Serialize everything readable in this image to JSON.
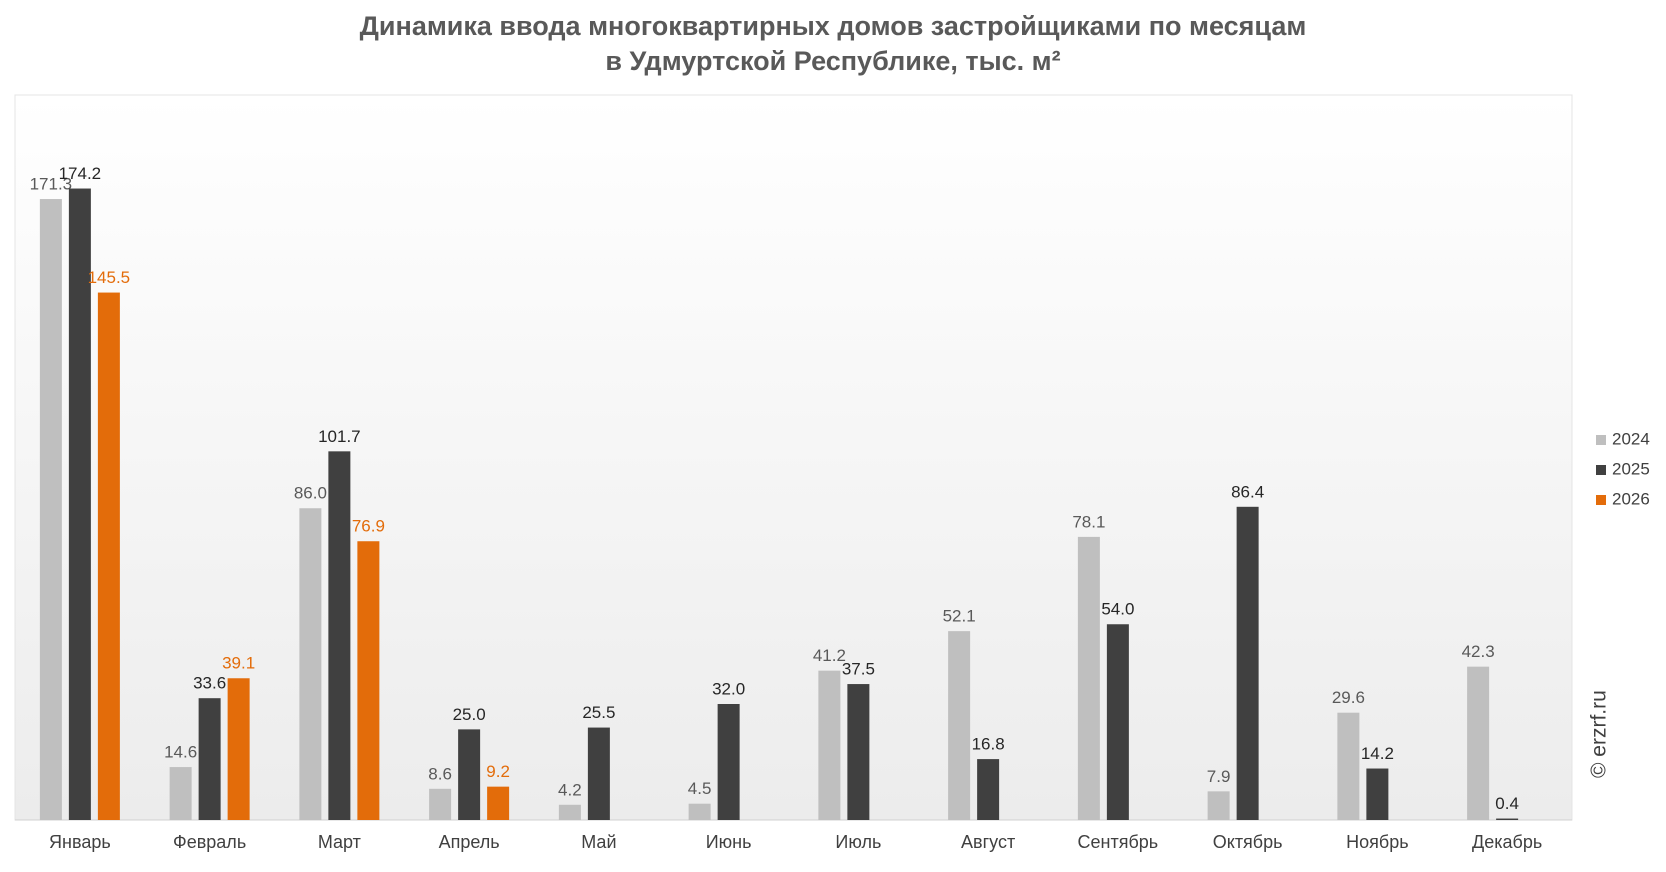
{
  "chart_data": {
    "type": "bar",
    "title": "Динамика ввода многоквартирных домов застройщиками по месяцам",
    "subtitle": "в Удмуртской Республике, тыс. м²",
    "categories": [
      "Январь",
      "Февраль",
      "Март",
      "Апрель",
      "Май",
      "Июнь",
      "Июль",
      "Август",
      "Сентябрь",
      "Октябрь",
      "Ноябрь",
      "Декабрь"
    ],
    "series": [
      {
        "name": "2024",
        "color": "#bfbfbf",
        "values": [
          171.3,
          14.6,
          86.0,
          8.6,
          4.2,
          4.5,
          41.2,
          52.1,
          78.1,
          7.9,
          29.6,
          42.3
        ],
        "value_labels": [
          "171.3",
          "14.6",
          "86.0",
          "8.6",
          "4.2",
          "4.5",
          "41.2",
          "52.1",
          "78.1",
          "7.9",
          "29.6",
          "42.3"
        ]
      },
      {
        "name": "2025",
        "color": "#404040",
        "values": [
          174.2,
          33.6,
          101.7,
          25.0,
          25.5,
          32.0,
          37.5,
          16.8,
          54.0,
          86.4,
          14.2,
          0.4
        ],
        "value_labels": [
          "174.2",
          "33.6",
          "101.7",
          "25.0",
          "25.5",
          "32.0",
          "37.5",
          "16.8",
          "54.0",
          "86.4",
          "14.2",
          "0.4"
        ]
      },
      {
        "name": "2026",
        "color": "#e36c0a",
        "values": [
          145.5,
          39.1,
          76.9,
          9.2,
          null,
          null,
          null,
          null,
          null,
          null,
          null,
          null
        ],
        "value_labels": [
          "145.5",
          "39.1",
          "76.9",
          "9.2",
          null,
          null,
          null,
          null,
          null,
          null,
          null,
          null
        ]
      }
    ],
    "ylim": [
      0,
      200
    ],
    "legend": "right",
    "watermark": "© erzrf.ru"
  }
}
